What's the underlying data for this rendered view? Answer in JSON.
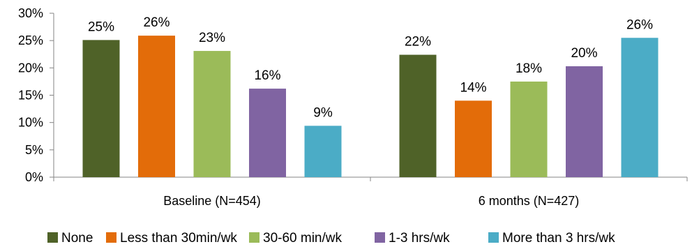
{
  "chart_data": {
    "type": "bar",
    "categories": [
      "Baseline (N=454)",
      "6 months (N=427)"
    ],
    "series": [
      {
        "name": "None",
        "color": "#4F6228",
        "values": [
          25,
          22
        ],
        "labels": [
          "25%",
          "22%"
        ],
        "heights": [
          25.1,
          22.4
        ]
      },
      {
        "name": "Less than 30min/wk",
        "color": "#E36C09",
        "values": [
          26,
          14
        ],
        "labels": [
          "26%",
          "14%"
        ],
        "heights": [
          25.9,
          14.0
        ]
      },
      {
        "name": "30-60 min/wk",
        "color": "#9BBB59",
        "values": [
          23,
          18
        ],
        "labels": [
          "23%",
          "18%"
        ],
        "heights": [
          23.1,
          17.5
        ]
      },
      {
        "name": "1-3 hrs/wk",
        "color": "#8064A2",
        "values": [
          16,
          20
        ],
        "labels": [
          "16%",
          "20%"
        ],
        "heights": [
          16.2,
          20.3
        ]
      },
      {
        "name": "More than 3 hrs/wk",
        "color": "#4BACC6",
        "values": [
          9,
          26
        ],
        "labels": [
          "9%",
          "26%"
        ],
        "heights": [
          9.4,
          25.5
        ]
      }
    ],
    "yticks": [
      "0%",
      "5%",
      "10%",
      "15%",
      "20%",
      "25%",
      "30%"
    ],
    "ylim": [
      0,
      30
    ],
    "grid": false,
    "legend_position": "bottom"
  }
}
